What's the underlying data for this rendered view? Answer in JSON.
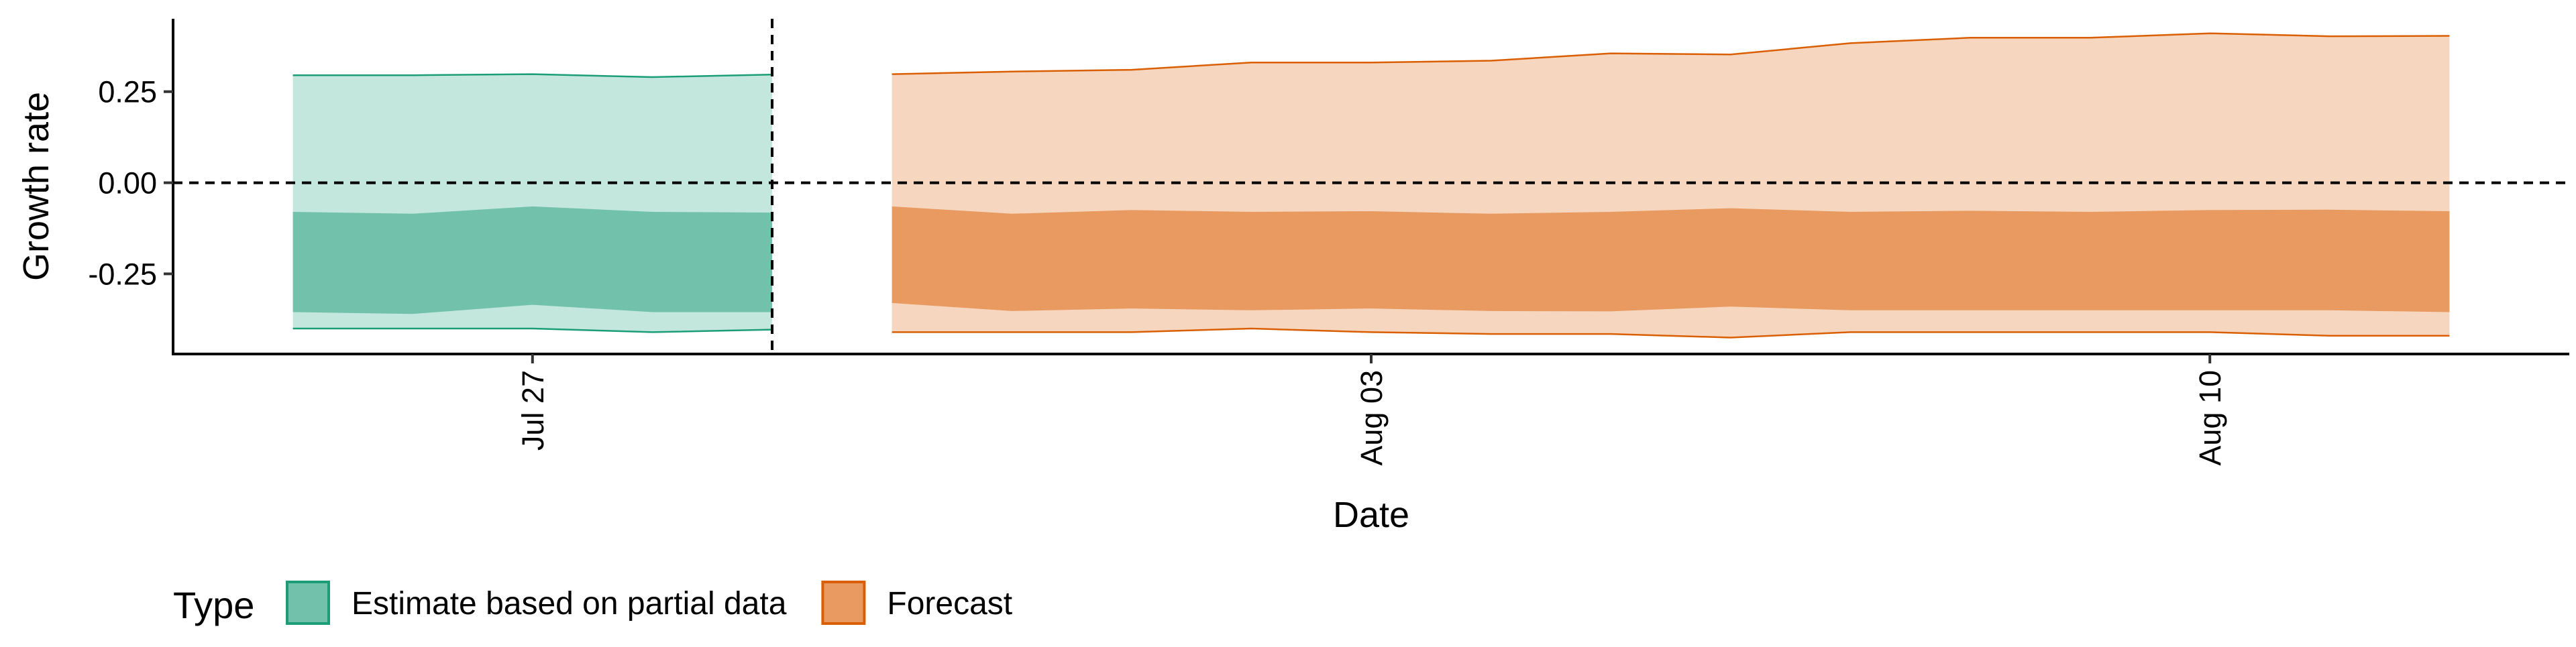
{
  "chart_data": {
    "type": "area",
    "xlabel": "Date",
    "ylabel": "Growth rate",
    "x_tick_labels": [
      {
        "date": "2020-07-27",
        "label": "Jul 27"
      },
      {
        "date": "2020-08-03",
        "label": "Aug 03"
      },
      {
        "date": "2020-08-10",
        "label": "Aug 10"
      }
    ],
    "y_ticks": [
      {
        "value": 0.25,
        "label": "0.25"
      },
      {
        "value": 0.0,
        "label": "0.00"
      },
      {
        "value": -0.25,
        "label": "-0.25"
      }
    ],
    "xlim": [
      "2020-07-24",
      "2020-08-13"
    ],
    "ylim": [
      -0.47,
      0.45
    ],
    "hline_y": 0,
    "vline_x": "2020-07-29",
    "grid": false,
    "legend": {
      "title": "Type",
      "position": "bottom-left",
      "entries": [
        {
          "label": "Estimate based on partial data",
          "fill": "#72c2ab",
          "stroke": "#1b9e77"
        },
        {
          "label": "Forecast",
          "fill": "#e89a61",
          "stroke": "#d95f02"
        }
      ]
    },
    "series": [
      {
        "name": "Estimate based on partial data",
        "outer_fill": "#c4e7dd",
        "inner_fill": "#72c2ab",
        "stroke": "#1b9e77",
        "x": [
          "2020-07-25",
          "2020-07-26",
          "2020-07-27",
          "2020-07-28",
          "2020-07-29"
        ],
        "outer_upper": [
          0.295,
          0.295,
          0.298,
          0.29,
          0.297
        ],
        "inner_upper": [
          -0.08,
          -0.085,
          -0.065,
          -0.08,
          -0.082
        ],
        "inner_lower": [
          -0.355,
          -0.36,
          -0.335,
          -0.355,
          -0.355
        ],
        "outer_lower": [
          -0.4,
          -0.4,
          -0.4,
          -0.41,
          -0.403
        ]
      },
      {
        "name": "Forecast",
        "outer_fill": "#f6d6be",
        "inner_fill": "#e89a61",
        "stroke": "#d95f02",
        "x": [
          "2020-07-30",
          "2020-07-31",
          "2020-08-01",
          "2020-08-02",
          "2020-08-03",
          "2020-08-04",
          "2020-08-05",
          "2020-08-06",
          "2020-08-07",
          "2020-08-08",
          "2020-08-09",
          "2020-08-10",
          "2020-08-11",
          "2020-08-12"
        ],
        "outer_upper": [
          0.298,
          0.305,
          0.31,
          0.33,
          0.33,
          0.335,
          0.355,
          0.352,
          0.383,
          0.398,
          0.398,
          0.41,
          0.402,
          0.403
        ],
        "inner_upper": [
          -0.065,
          -0.085,
          -0.075,
          -0.08,
          -0.078,
          -0.085,
          -0.08,
          -0.07,
          -0.08,
          -0.077,
          -0.08,
          -0.075,
          -0.074,
          -0.078
        ],
        "inner_lower": [
          -0.33,
          -0.352,
          -0.345,
          -0.35,
          -0.345,
          -0.352,
          -0.353,
          -0.34,
          -0.35,
          -0.35,
          -0.35,
          -0.35,
          -0.35,
          -0.355
        ],
        "outer_lower": [
          -0.41,
          -0.41,
          -0.41,
          -0.4,
          -0.41,
          -0.415,
          -0.415,
          -0.425,
          -0.41,
          -0.41,
          -0.41,
          -0.41,
          -0.42,
          -0.42
        ]
      }
    ]
  }
}
